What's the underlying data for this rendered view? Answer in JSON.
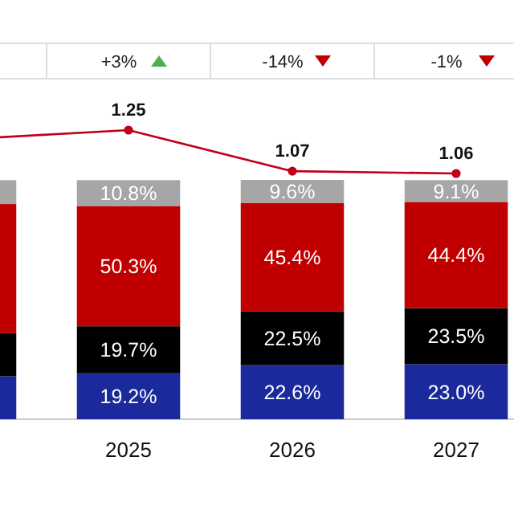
{
  "chart_data": [
    {
      "type": "bar",
      "stacked": true,
      "categories": [
        null,
        "2025",
        "2026",
        "2027"
      ],
      "tick_labels": "x",
      "series": [
        {
          "color": "#1a2a9c",
          "values": [
            18,
            19.2,
            22.6,
            23.0
          ],
          "value_labels": [
            null,
            "19.2%",
            "22.6%",
            "23.0%"
          ]
        },
        {
          "color": "#000000",
          "values": [
            18,
            19.7,
            22.5,
            23.5
          ],
          "value_labels": [
            null,
            "19.7%",
            "22.5%",
            "23.5%"
          ]
        },
        {
          "color": "#c00000",
          "values": [
            54,
            50.3,
            45.4,
            44.4
          ],
          "value_labels": [
            null,
            "50.3%",
            "45.4%",
            "44.4%"
          ]
        },
        {
          "color": "#a6a6a6",
          "values": [
            10,
            10.8,
            9.6,
            9.1
          ],
          "value_labels": [
            null,
            "10.8%",
            "9.6%",
            "9.1%"
          ]
        }
      ],
      "annotations": [
        "+3%",
        "-14%",
        "-1%"
      ]
    },
    {
      "type": "line",
      "categories": [
        null,
        null,
        null,
        null
      ],
      "tick_labels": false,
      "marker": "circle",
      "series": [
        {
          "color": "#c00018",
          "values": [
            1.21,
            1.25,
            1.07,
            1.06
          ],
          "value_labels": [
            null,
            "1.25",
            "1.07",
            "1.06"
          ]
        }
      ]
    }
  ]
}
